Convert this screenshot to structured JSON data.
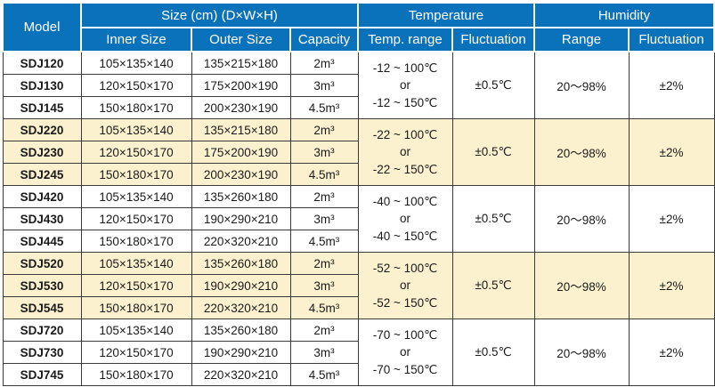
{
  "colors": {
    "header_blue": "#0a72ba",
    "row_highlight": "#fbf1ce",
    "grid_border": "#3a3a3a",
    "header_text": "#ffffff"
  },
  "header": {
    "model": "Model",
    "size_group": "Size (cm) (D×W×H)",
    "inner_size": "Inner Size",
    "outer_size": "Outer Size",
    "capacity": "Capacity",
    "temperature_group": "Temperature",
    "temp_range": "Temp. range",
    "temp_fluctuation": "Fluctuation",
    "humidity_group": "Humidity",
    "humidity_range": "Range",
    "humidity_fluctuation": "Fluctuation"
  },
  "groups": [
    {
      "highlighted": false,
      "rows": [
        {
          "model": "SDJ120",
          "inner": "105×135×140",
          "outer": "135×215×180",
          "capacity": "2m³"
        },
        {
          "model": "SDJ130",
          "inner": "120×150×170",
          "outer": "175×200×190",
          "capacity": "3m³"
        },
        {
          "model": "SDJ145",
          "inner": "150×180×170",
          "outer": "200×230×190",
          "capacity": "4.5m³"
        }
      ],
      "temp_range": "-12 ~ 100℃\nor\n-12 ~ 150℃",
      "temp_fluctuation": "±0.5℃",
      "humidity_range": "20～98%",
      "humidity_fluctuation": "±2%"
    },
    {
      "highlighted": true,
      "rows": [
        {
          "model": "SDJ220",
          "inner": "105×135×140",
          "outer": "135×215×180",
          "capacity": "2m³"
        },
        {
          "model": "SDJ230",
          "inner": "120×150×170",
          "outer": "175×200×190",
          "capacity": "3m³"
        },
        {
          "model": "SDJ245",
          "inner": "150×180×170",
          "outer": "200×230×190",
          "capacity": "4.5m³"
        }
      ],
      "temp_range": "-22 ~ 100℃\nor\n-22 ~ 150℃",
      "temp_fluctuation": "±0.5℃",
      "humidity_range": "20～98%",
      "humidity_fluctuation": "±2%"
    },
    {
      "highlighted": false,
      "rows": [
        {
          "model": "SDJ420",
          "inner": "105×135×140",
          "outer": "135×260×180",
          "capacity": "2m³"
        },
        {
          "model": "SDJ430",
          "inner": "120×150×170",
          "outer": "190×290×210",
          "capacity": "3m³"
        },
        {
          "model": "SDJ445",
          "inner": "150×180×170",
          "outer": "220×320×210",
          "capacity": "4.5m³"
        }
      ],
      "temp_range": "-40 ~ 100℃\nor\n-40 ~ 150℃",
      "temp_fluctuation": "±0.5℃",
      "humidity_range": "20～98%",
      "humidity_fluctuation": "±2%"
    },
    {
      "highlighted": true,
      "rows": [
        {
          "model": "SDJ520",
          "inner": "105×135×140",
          "outer": "135×260×180",
          "capacity": "2m³"
        },
        {
          "model": "SDJ530",
          "inner": "120×150×170",
          "outer": "190×290×210",
          "capacity": "3m³"
        },
        {
          "model": "SDJ545",
          "inner": "150×180×170",
          "outer": "220×320×210",
          "capacity": "4.5m³"
        }
      ],
      "temp_range": "-52 ~ 100℃\nor\n-52 ~ 150℃",
      "temp_fluctuation": "±0.5℃",
      "humidity_range": "20～98%",
      "humidity_fluctuation": "±2%"
    },
    {
      "highlighted": false,
      "rows": [
        {
          "model": "SDJ720",
          "inner": "105×135×140",
          "outer": "135×260×180",
          "capacity": "2m³"
        },
        {
          "model": "SDJ730",
          "inner": "120×150×170",
          "outer": "190×290×210",
          "capacity": "3m³"
        },
        {
          "model": "SDJ745",
          "inner": "150×180×170",
          "outer": "220×320×210",
          "capacity": "4.5m³"
        }
      ],
      "temp_range": "-70 ~ 100℃\nor\n-70 ~ 150℃",
      "temp_fluctuation": "±0.5℃",
      "humidity_range": "20～98%",
      "humidity_fluctuation": "±2%"
    }
  ]
}
